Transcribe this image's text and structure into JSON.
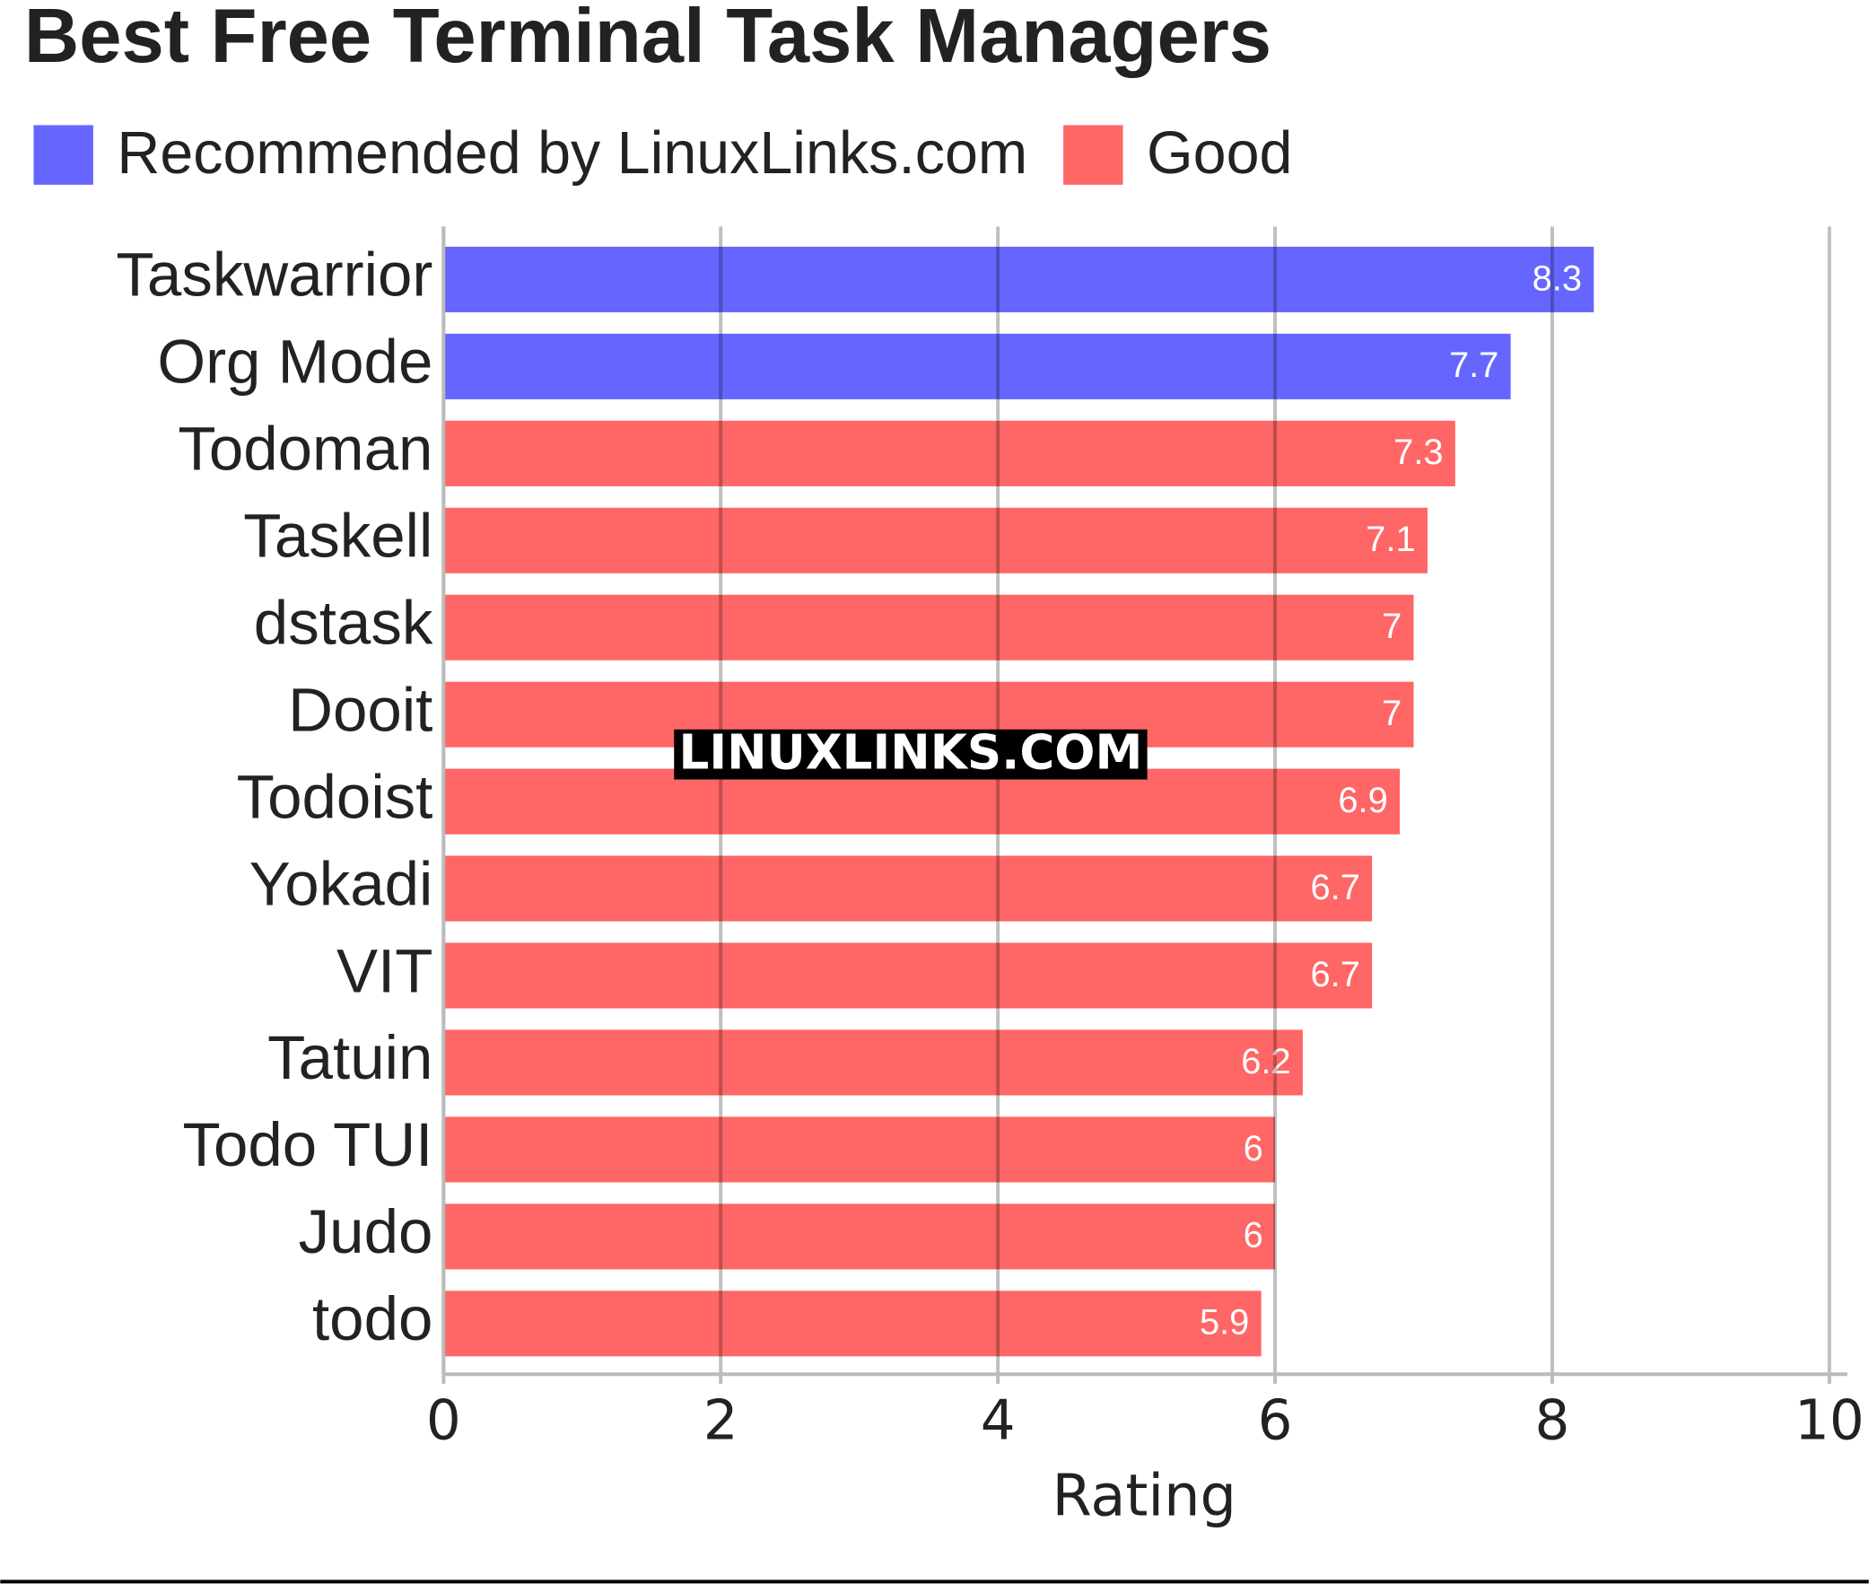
{
  "chart_data": {
    "type": "hbar",
    "title": "Best Free Terminal Task Managers",
    "categories": [
      "Taskwarrior",
      "Org Mode",
      "Todoman",
      "Taskell",
      "dstask",
      "Dooit",
      "Todoist",
      "Yokadi",
      "VIT",
      "Tatuin",
      "Todo TUI",
      "Judo",
      "todo"
    ],
    "series": [
      {
        "name": "Recommended by LinuxLinks.com",
        "color": "#6666ff",
        "values": [
          8.3,
          7.7,
          null,
          null,
          null,
          null,
          null,
          null,
          null,
          null,
          null,
          null,
          null
        ]
      },
      {
        "name": "Good",
        "color": "#ff6666",
        "values": [
          null,
          null,
          7.3,
          7.1,
          7,
          7,
          6.9,
          6.7,
          6.7,
          6.2,
          6,
          6,
          5.9
        ]
      }
    ],
    "xlim": [
      0,
      10
    ],
    "xticks": [
      0,
      2,
      4,
      6,
      8,
      10
    ],
    "xlabel": "Rating",
    "grid": true,
    "watermark": "LINUXLINKS.COM"
  }
}
